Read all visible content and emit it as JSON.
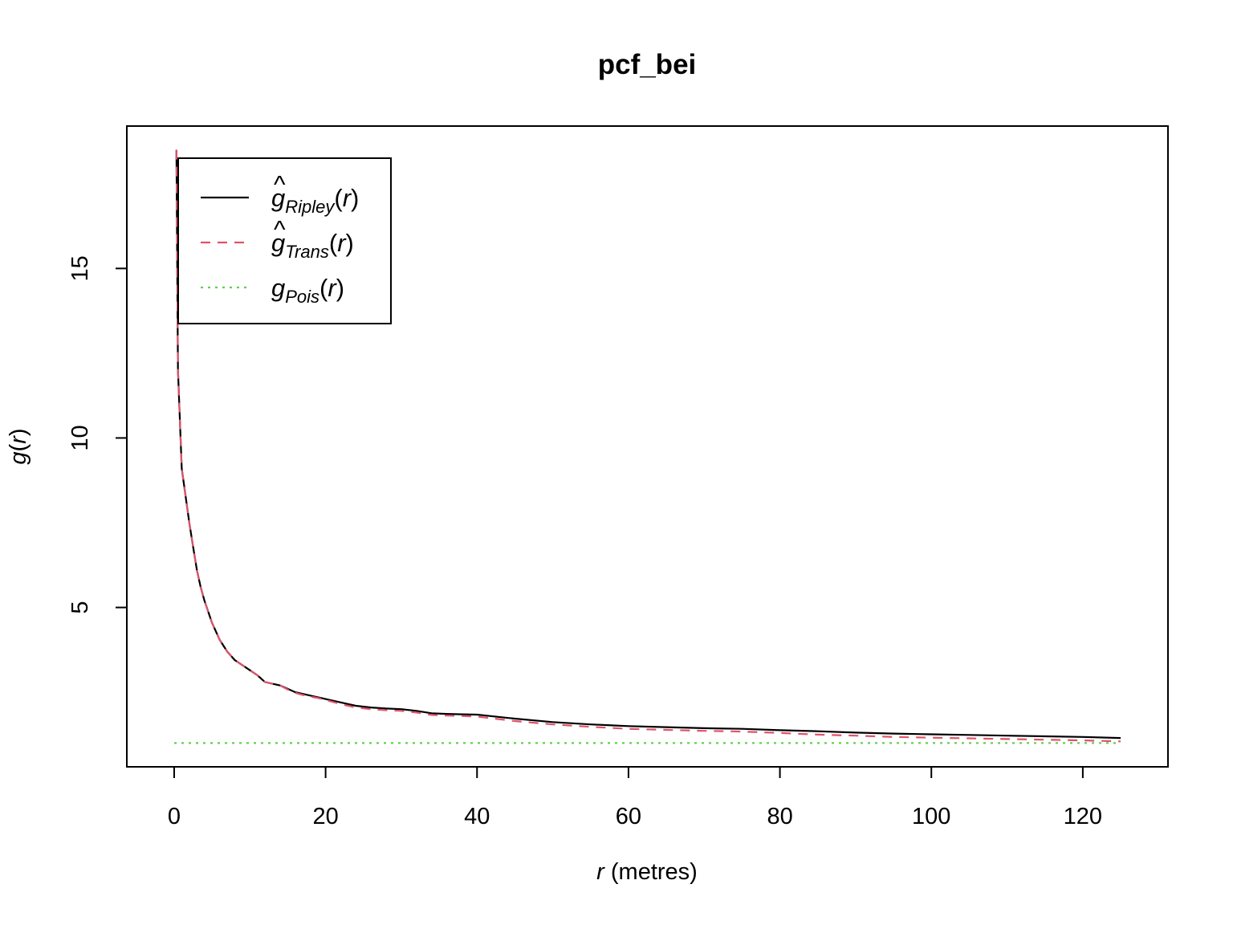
{
  "chart_data": {
    "type": "line",
    "title": "pcf_bei",
    "xlabel": {
      "symbol": "r",
      "unit": " (metres)"
    },
    "ylabel": {
      "symbol": "g",
      "arg": "r"
    },
    "xlim": [
      -6.25,
      131.25
    ],
    "ylim": [
      0.3,
      19.2
    ],
    "x_ticks": [
      "0",
      "20",
      "40",
      "60",
      "80",
      "100",
      "120"
    ],
    "y_ticks": [
      "5",
      "10",
      "15"
    ],
    "legend_position": "top-left",
    "series": [
      {
        "name": "ĝRipley(r)",
        "label_parts": {
          "base": "g",
          "hat": true,
          "subscript": "Ripley",
          "arg": "r"
        },
        "color": "#000000",
        "dash": "solid",
        "x": [
          0.3,
          0.5,
          1,
          1.5,
          2,
          2.5,
          3,
          3.5,
          4,
          5,
          6,
          7,
          8,
          9,
          10,
          11,
          12,
          13,
          14,
          15,
          16,
          17,
          18,
          19,
          20,
          22,
          24,
          26,
          28,
          30,
          32,
          34,
          36,
          38,
          40,
          45,
          50,
          55,
          60,
          65,
          70,
          75,
          80,
          85,
          90,
          95,
          100,
          105,
          110,
          115,
          120,
          125
        ],
        "y": [
          18.5,
          12.0,
          9.1,
          8.3,
          7.5,
          6.8,
          6.1,
          5.6,
          5.2,
          4.55,
          4.05,
          3.7,
          3.45,
          3.3,
          3.15,
          3.0,
          2.8,
          2.75,
          2.7,
          2.6,
          2.5,
          2.45,
          2.4,
          2.35,
          2.3,
          2.2,
          2.1,
          2.05,
          2.02,
          2.0,
          1.95,
          1.88,
          1.86,
          1.85,
          1.84,
          1.72,
          1.62,
          1.55,
          1.5,
          1.47,
          1.44,
          1.42,
          1.38,
          1.35,
          1.31,
          1.28,
          1.26,
          1.24,
          1.22,
          1.2,
          1.18,
          1.15
        ]
      },
      {
        "name": "ĝTrans(r)",
        "label_parts": {
          "base": "g",
          "hat": true,
          "subscript": "Trans",
          "arg": "r"
        },
        "color": "#DF536B",
        "dash": "dashed",
        "x": [
          0.3,
          0.5,
          1,
          1.5,
          2,
          2.5,
          3,
          3.5,
          4,
          5,
          6,
          7,
          8,
          9,
          10,
          11,
          12,
          13,
          14,
          15,
          16,
          17,
          18,
          19,
          20,
          22,
          24,
          26,
          28,
          30,
          32,
          34,
          36,
          38,
          40,
          45,
          50,
          55,
          60,
          65,
          70,
          75,
          80,
          85,
          90,
          95,
          100,
          105,
          110,
          115,
          120,
          125
        ],
        "y": [
          18.5,
          12.0,
          9.1,
          8.3,
          7.5,
          6.8,
          6.1,
          5.6,
          5.2,
          4.55,
          4.05,
          3.7,
          3.45,
          3.3,
          3.15,
          3.0,
          2.8,
          2.75,
          2.7,
          2.58,
          2.48,
          2.42,
          2.37,
          2.33,
          2.27,
          2.15,
          2.05,
          2.0,
          1.97,
          1.95,
          1.9,
          1.83,
          1.81,
          1.8,
          1.78,
          1.65,
          1.55,
          1.48,
          1.42,
          1.39,
          1.36,
          1.34,
          1.3,
          1.25,
          1.22,
          1.18,
          1.16,
          1.14,
          1.12,
          1.1,
          1.08,
          1.05
        ]
      },
      {
        "name": "gPois(r)",
        "label_parts": {
          "base": "g",
          "hat": false,
          "subscript": "Pois",
          "arg": "r"
        },
        "color": "#61D04F",
        "dash": "dotted",
        "x": [
          0,
          125
        ],
        "y": [
          1,
          1
        ]
      }
    ]
  }
}
